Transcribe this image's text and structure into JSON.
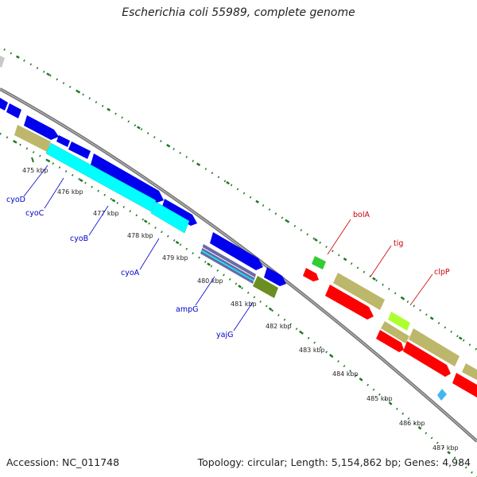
{
  "title": "Escherichia coli 55989, complete genome",
  "accession": "Accession: NC_011748",
  "summary": "Topology: circular; Length: 5,154,862 bp; Genes: 4,984",
  "colors": {
    "background": "#ffffff",
    "backbone": "#7f7f7f",
    "tick_dots": "#1f7a1f",
    "blue_genes": "#0000ee",
    "cyan_genes": "#00ffff",
    "khaki_genes": "#bdb76b",
    "red_genes": "#ff0000",
    "green_genes": "#33cc33",
    "olive_genes": "#6b8e23",
    "lime_genes": "#adff2f",
    "label_blue": "#0000cc",
    "label_red": "#cc0000"
  },
  "kbp_labels": [
    "475 kbp",
    "476 kbp",
    "477 kbp",
    "478 kbp",
    "479 kbp",
    "480 kbp",
    "481 kbp",
    "482 kbp",
    "483 kbp",
    "484 kbp",
    "485 kbp",
    "486 kbp",
    "487 kbp"
  ],
  "gene_labels_blue": [
    "cyoD",
    "cyoC",
    "cyoB",
    "cyoA",
    "ampG",
    "yajG"
  ],
  "gene_labels_red": [
    "bolA",
    "tig",
    "clpP"
  ]
}
